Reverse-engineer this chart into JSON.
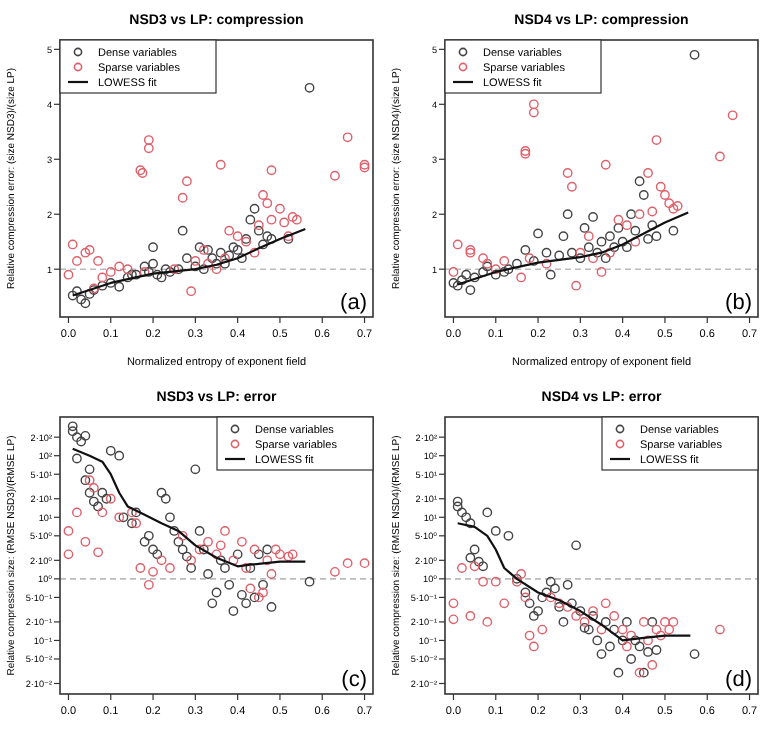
{
  "chart_data": [
    {
      "type": "scatter",
      "title": "NSD3 vs LP: compression",
      "xlabel": "Normalized entropy of exponent field",
      "ylabel": "Relative compression error: (size NSD3)/(size LP)",
      "annotations": [
        "(a)"
      ],
      "legend": "top left",
      "grid": false,
      "xlim": [
        -0.02,
        0.72
      ],
      "ylim": [
        0.13,
        5.17
      ],
      "xticks": [
        {
          "value": 0,
          "label": "0.0"
        },
        {
          "value": 0.1,
          "label": "0.1"
        },
        {
          "value": 0.2,
          "label": "0.2"
        },
        {
          "value": 0.3,
          "label": "0.3"
        },
        {
          "value": 0.4,
          "label": "0.4"
        },
        {
          "value": 0.5,
          "label": "0.5"
        },
        {
          "value": 0.6,
          "label": "0.6"
        },
        {
          "value": 0.7,
          "label": "0.7"
        }
      ],
      "yticks": [
        1,
        2,
        3,
        4,
        5
      ],
      "ref_lines": [
        {
          "axis": "y",
          "value": 1,
          "color": "#bbbbbb",
          "line_style": "dashed"
        }
      ],
      "series": [
        {
          "name": "Dense variables",
          "color": "#444444",
          "marker": "circle",
          "x": [
            0.01,
            0.02,
            0.03,
            0.04,
            0.05,
            0.06,
            0.08,
            0.1,
            0.12,
            0.14,
            0.16,
            0.18,
            0.19,
            0.2,
            0.21,
            0.22,
            0.23,
            0.24,
            0.26,
            0.27,
            0.28,
            0.3,
            0.31,
            0.32,
            0.33,
            0.34,
            0.35,
            0.36,
            0.37,
            0.38,
            0.39,
            0.4,
            0.41,
            0.42,
            0.43,
            0.44,
            0.45,
            0.46,
            0.47,
            0.48,
            0.52,
            0.57,
            0.2,
            0.15
          ],
          "values": [
            0.52,
            0.6,
            0.45,
            0.38,
            0.55,
            0.62,
            0.7,
            0.75,
            0.68,
            0.85,
            0.9,
            1.05,
            0.95,
            1.1,
            0.9,
            0.85,
            1.0,
            0.95,
            1.0,
            1.7,
            1.2,
            1.05,
            1.4,
            1.0,
            1.35,
            1.2,
            1.1,
            1.3,
            1.1,
            1.25,
            1.4,
            1.35,
            1.2,
            1.55,
            1.9,
            2.1,
            1.7,
            1.45,
            1.6,
            1.55,
            1.55,
            4.3,
            1.4,
            0.9
          ]
        },
        {
          "name": "Sparse variables",
          "color": "#e0606a",
          "marker": "circle",
          "x": [
            0.01,
            0.0,
            0.02,
            0.04,
            0.05,
            0.07,
            0.08,
            0.1,
            0.17,
            0.175,
            0.19,
            0.19,
            0.18,
            0.25,
            0.27,
            0.28,
            0.29,
            0.32,
            0.33,
            0.36,
            0.37,
            0.38,
            0.4,
            0.42,
            0.44,
            0.46,
            0.47,
            0.48,
            0.48,
            0.5,
            0.51,
            0.52,
            0.53,
            0.54,
            0.45,
            0.35,
            0.3,
            0.63,
            0.66,
            0.7,
            0.7,
            0.12,
            0.14,
            0.06
          ],
          "values": [
            1.45,
            0.9,
            1.15,
            1.3,
            1.35,
            1.15,
            0.85,
            0.95,
            2.8,
            2.75,
            3.2,
            3.35,
            0.95,
            1.0,
            2.3,
            2.6,
            0.6,
            1.35,
            1.1,
            2.9,
            1.2,
            1.7,
            1.6,
            1.5,
            1.3,
            2.35,
            2.2,
            2.8,
            1.9,
            2.1,
            1.85,
            1.6,
            1.95,
            1.9,
            1.8,
            1.0,
            1.15,
            2.7,
            3.4,
            2.9,
            2.85,
            1.05,
            1.0,
            0.65
          ]
        },
        {
          "name": "LOWESS fit",
          "type": "line",
          "color": "#111111",
          "marker": "none",
          "line_style": "solid",
          "x": [
            0.01,
            0.1,
            0.2,
            0.3,
            0.35,
            0.4,
            0.45,
            0.5,
            0.56
          ],
          "values": [
            0.52,
            0.75,
            0.92,
            1.0,
            1.08,
            1.2,
            1.38,
            1.55,
            1.73
          ]
        }
      ]
    },
    {
      "type": "scatter",
      "title": "NSD4 vs LP: compression",
      "xlabel": "Normalized entropy of exponent field",
      "ylabel": "Relative compression error: (size NSD4)/(size LP)",
      "annotations": [
        "(b)"
      ],
      "legend": "top left",
      "grid": false,
      "xlim": [
        -0.02,
        0.72
      ],
      "ylim": [
        0.13,
        5.17
      ],
      "xticks": [
        {
          "value": 0,
          "label": "0.0"
        },
        {
          "value": 0.1,
          "label": "0.1"
        },
        {
          "value": 0.2,
          "label": "0.2"
        },
        {
          "value": 0.3,
          "label": "0.3"
        },
        {
          "value": 0.4,
          "label": "0.4"
        },
        {
          "value": 0.5,
          "label": "0.5"
        },
        {
          "value": 0.6,
          "label": "0.6"
        },
        {
          "value": 0.7,
          "label": "0.7"
        }
      ],
      "yticks": [
        1,
        2,
        3,
        4,
        5
      ],
      "ref_lines": [
        {
          "axis": "y",
          "value": 1,
          "color": "#bbbbbb",
          "line_style": "dashed"
        }
      ],
      "series": [
        {
          "name": "Dense variables",
          "color": "#444444",
          "marker": "circle",
          "x": [
            0.0,
            0.01,
            0.02,
            0.03,
            0.04,
            0.05,
            0.07,
            0.08,
            0.1,
            0.12,
            0.15,
            0.17,
            0.19,
            0.2,
            0.22,
            0.23,
            0.25,
            0.26,
            0.27,
            0.28,
            0.3,
            0.31,
            0.32,
            0.33,
            0.34,
            0.35,
            0.36,
            0.37,
            0.38,
            0.39,
            0.4,
            0.41,
            0.42,
            0.43,
            0.44,
            0.45,
            0.46,
            0.47,
            0.48,
            0.57,
            0.52,
            0.13
          ],
          "values": [
            0.75,
            0.7,
            0.8,
            0.9,
            0.62,
            0.85,
            0.95,
            1.05,
            0.9,
            0.95,
            1.1,
            1.35,
            1.15,
            1.65,
            1.3,
            0.9,
            1.25,
            1.6,
            2.0,
            1.3,
            1.2,
            1.75,
            1.4,
            1.95,
            1.3,
            1.5,
            1.2,
            1.6,
            1.4,
            1.75,
            1.5,
            1.4,
            2.0,
            1.7,
            2.6,
            2.35,
            1.55,
            1.8,
            1.6,
            4.9,
            1.7,
            1.0
          ]
        },
        {
          "name": "Sparse variables",
          "color": "#e0606a",
          "marker": "circle",
          "x": [
            0.01,
            0.0,
            0.04,
            0.04,
            0.07,
            0.08,
            0.16,
            0.17,
            0.17,
            0.19,
            0.19,
            0.18,
            0.22,
            0.27,
            0.28,
            0.29,
            0.32,
            0.33,
            0.36,
            0.37,
            0.39,
            0.41,
            0.43,
            0.46,
            0.47,
            0.48,
            0.49,
            0.5,
            0.51,
            0.52,
            0.53,
            0.44,
            0.35,
            0.3,
            0.63,
            0.66,
            0.12,
            0.1
          ],
          "values": [
            1.45,
            0.95,
            1.3,
            1.35,
            1.2,
            1.1,
            0.85,
            3.15,
            3.1,
            3.85,
            4.0,
            1.2,
            1.1,
            2.75,
            2.5,
            0.7,
            1.6,
            1.2,
            2.9,
            1.3,
            1.9,
            1.8,
            1.5,
            2.75,
            2.05,
            3.35,
            2.5,
            2.35,
            2.2,
            2.1,
            2.15,
            2.0,
            0.95,
            1.3,
            3.05,
            3.8,
            1.15,
            1.0
          ]
        },
        {
          "name": "LOWESS fit",
          "type": "line",
          "color": "#111111",
          "marker": "none",
          "line_style": "solid",
          "x": [
            0.01,
            0.1,
            0.2,
            0.3,
            0.35,
            0.4,
            0.45,
            0.5,
            0.555
          ],
          "values": [
            0.72,
            0.95,
            1.12,
            1.22,
            1.3,
            1.45,
            1.65,
            1.85,
            2.03
          ]
        }
      ]
    },
    {
      "type": "scatter",
      "title": "NSD3 vs LP: error",
      "ylabel": "Relative compression size: (RMSE NSD3)/(RMSE LP)",
      "annotations": [
        "(c)"
      ],
      "legend": "top right",
      "grid": false,
      "log": "y",
      "xlim": [
        -0.02,
        0.72
      ],
      "ylim": [
        0.0135,
        425
      ],
      "xticks": [
        {
          "value": 0,
          "label": "0.0"
        },
        {
          "value": 0.1,
          "label": "0.1"
        },
        {
          "value": 0.2,
          "label": "0.2"
        },
        {
          "value": 0.3,
          "label": "0.3"
        },
        {
          "value": 0.4,
          "label": "0.4"
        },
        {
          "value": 0.5,
          "label": "0.5"
        },
        {
          "value": 0.6,
          "label": "0.6"
        },
        {
          "value": 0.7,
          "label": "0.7"
        }
      ],
      "yticks": [
        {
          "value": 200,
          "label": "2·10²"
        },
        {
          "value": 100,
          "label": "10²"
        },
        {
          "value": 50,
          "label": "5·10¹"
        },
        {
          "value": 20,
          "label": "2·10¹"
        },
        {
          "value": 10,
          "label": "10¹"
        },
        {
          "value": 5,
          "label": "5·10⁰"
        },
        {
          "value": 2,
          "label": "2·10⁰"
        },
        {
          "value": 1,
          "label": "10⁰"
        },
        {
          "value": 0.5,
          "label": "5·10⁻¹"
        },
        {
          "value": 0.2,
          "label": "2·10⁻¹"
        },
        {
          "value": 0.1,
          "label": "10⁻¹"
        },
        {
          "value": 0.05,
          "label": "5·10⁻²"
        },
        {
          "value": 0.02,
          "label": "2·10⁻²"
        }
      ],
      "ref_lines": [
        {
          "axis": "y",
          "value": 1,
          "color": "#bbbbbb",
          "line_style": "dashed"
        }
      ],
      "series": [
        {
          "name": "Dense variables",
          "color": "#444444",
          "marker": "circle",
          "x": [
            0.01,
            0.01,
            0.02,
            0.03,
            0.04,
            0.02,
            0.05,
            0.04,
            0.05,
            0.06,
            0.07,
            0.08,
            0.09,
            0.1,
            0.12,
            0.13,
            0.15,
            0.16,
            0.18,
            0.19,
            0.2,
            0.21,
            0.22,
            0.23,
            0.24,
            0.25,
            0.26,
            0.27,
            0.28,
            0.29,
            0.3,
            0.31,
            0.32,
            0.33,
            0.34,
            0.35,
            0.36,
            0.37,
            0.38,
            0.39,
            0.4,
            0.41,
            0.42,
            0.43,
            0.44,
            0.45,
            0.46,
            0.47,
            0.48,
            0.57
          ],
          "values": [
            300,
            250,
            200,
            170,
            210,
            90,
            60,
            40,
            25,
            18,
            15,
            25,
            20,
            120,
            100,
            10,
            8,
            12,
            4,
            5,
            3,
            2.5,
            25,
            20,
            10,
            6,
            4,
            3,
            2.3,
            1.5,
            60,
            6,
            3,
            1.2,
            0.4,
            0.6,
            2,
            1.5,
            0.8,
            0.3,
            2.5,
            0.55,
            0.4,
            1.5,
            0.5,
            2.5,
            0.8,
            3,
            0.35,
            0.9
          ]
        },
        {
          "name": "Sparse variables",
          "color": "#e0606a",
          "marker": "circle",
          "x": [
            0.0,
            0.0,
            0.02,
            0.04,
            0.05,
            0.06,
            0.07,
            0.08,
            0.1,
            0.12,
            0.15,
            0.16,
            0.17,
            0.19,
            0.2,
            0.22,
            0.24,
            0.27,
            0.29,
            0.31,
            0.33,
            0.35,
            0.37,
            0.39,
            0.41,
            0.42,
            0.43,
            0.44,
            0.45,
            0.47,
            0.48,
            0.49,
            0.5,
            0.52,
            0.53,
            0.36,
            0.46,
            0.63,
            0.66,
            0.7
          ],
          "values": [
            6,
            2.5,
            12,
            4,
            40,
            30,
            2.7,
            12,
            20,
            10,
            12,
            8,
            1.5,
            0.8,
            1.3,
            2,
            1.5,
            5,
            2,
            3,
            4,
            2.5,
            6,
            2,
            4,
            1.5,
            0.7,
            3,
            0.5,
            2,
            1.2,
            3,
            2.5,
            2.3,
            2.5,
            3.5,
            0.6,
            1.3,
            1.8,
            1.8
          ]
        },
        {
          "name": "LOWESS fit",
          "type": "line",
          "color": "#111111",
          "marker": "none",
          "line_style": "solid",
          "x": [
            0.01,
            0.05,
            0.08,
            0.1,
            0.12,
            0.14,
            0.18,
            0.22,
            0.26,
            0.3,
            0.35,
            0.4,
            0.43,
            0.5,
            0.56
          ],
          "values": [
            130,
            100,
            80,
            50,
            25,
            15,
            11,
            8,
            6,
            3.5,
            2.2,
            1.6,
            1.7,
            1.9,
            1.9
          ]
        }
      ]
    },
    {
      "type": "scatter",
      "title": "NSD4 vs LP: error",
      "ylabel": "Relative compression size: (RMSE NSD4)/(RMSE LP)",
      "annotations": [
        "(d)"
      ],
      "legend": "top right",
      "grid": false,
      "log": "y",
      "xlim": [
        -0.02,
        0.72
      ],
      "ylim": [
        0.0135,
        425
      ],
      "xticks": [
        {
          "value": 0,
          "label": "0.0"
        },
        {
          "value": 0.1,
          "label": "0.1"
        },
        {
          "value": 0.2,
          "label": "0.2"
        },
        {
          "value": 0.3,
          "label": "0.3"
        },
        {
          "value": 0.4,
          "label": "0.4"
        },
        {
          "value": 0.5,
          "label": "0.5"
        },
        {
          "value": 0.6,
          "label": "0.6"
        },
        {
          "value": 0.7,
          "label": "0.7"
        }
      ],
      "yticks": [
        {
          "value": 200,
          "label": "2·10²"
        },
        {
          "value": 100,
          "label": "10²"
        },
        {
          "value": 50,
          "label": "5·10¹"
        },
        {
          "value": 20,
          "label": "2·10¹"
        },
        {
          "value": 10,
          "label": "10¹"
        },
        {
          "value": 5,
          "label": "5·10⁰"
        },
        {
          "value": 2,
          "label": "2·10⁰"
        },
        {
          "value": 1,
          "label": "10⁰"
        },
        {
          "value": 0.5,
          "label": "5·10⁻¹"
        },
        {
          "value": 0.2,
          "label": "2·10⁻¹"
        },
        {
          "value": 0.1,
          "label": "10⁻¹"
        },
        {
          "value": 0.05,
          "label": "5·10⁻²"
        },
        {
          "value": 0.02,
          "label": "2·10⁻²"
        }
      ],
      "ref_lines": [
        {
          "axis": "y",
          "value": 1,
          "color": "#bbbbbb",
          "line_style": "dashed"
        }
      ],
      "series": [
        {
          "name": "Dense variables",
          "color": "#444444",
          "marker": "circle",
          "x": [
            0.01,
            0.01,
            0.02,
            0.03,
            0.04,
            0.05,
            0.04,
            0.06,
            0.07,
            0.08,
            0.1,
            0.13,
            0.15,
            0.17,
            0.18,
            0.19,
            0.2,
            0.21,
            0.22,
            0.23,
            0.24,
            0.25,
            0.26,
            0.27,
            0.28,
            0.29,
            0.3,
            0.31,
            0.32,
            0.33,
            0.34,
            0.35,
            0.36,
            0.37,
            0.38,
            0.39,
            0.4,
            0.41,
            0.42,
            0.43,
            0.44,
            0.45,
            0.46,
            0.47,
            0.48,
            0.57
          ],
          "values": [
            18,
            15,
            12,
            10,
            8,
            3,
            2.2,
            1.9,
            1.6,
            12,
            6,
            5,
            1,
            0.6,
            0.4,
            0.25,
            0.3,
            0.5,
            0.6,
            0.9,
            0.7,
            0.35,
            0.2,
            0.8,
            0.4,
            3.5,
            0.3,
            0.16,
            0.15,
            0.25,
            0.1,
            0.06,
            0.2,
            0.08,
            0.15,
            0.03,
            0.1,
            0.2,
            0.05,
            0.1,
            0.08,
            0.03,
            0.065,
            0.2,
            0.07,
            0.06
          ]
        },
        {
          "name": "Sparse variables",
          "color": "#e0606a",
          "marker": "circle",
          "x": [
            0.0,
            0.0,
            0.02,
            0.04,
            0.05,
            0.07,
            0.08,
            0.1,
            0.12,
            0.15,
            0.16,
            0.17,
            0.18,
            0.19,
            0.21,
            0.23,
            0.25,
            0.27,
            0.29,
            0.31,
            0.33,
            0.35,
            0.36,
            0.38,
            0.4,
            0.41,
            0.42,
            0.44,
            0.45,
            0.46,
            0.47,
            0.48,
            0.49,
            0.5,
            0.51,
            0.52,
            0.63
          ],
          "values": [
            0.4,
            0.22,
            1.5,
            0.25,
            1.6,
            0.9,
            0.2,
            0.9,
            0.4,
            0.9,
            1.2,
            0.5,
            0.12,
            0.08,
            0.15,
            0.5,
            0.4,
            0.35,
            0.25,
            0.2,
            0.3,
            0.15,
            0.4,
            0.25,
            0.15,
            0.08,
            0.12,
            0.03,
            0.2,
            0.1,
            0.04,
            0.15,
            0.12,
            0.2,
            0.15,
            0.2,
            0.15
          ]
        },
        {
          "name": "LOWESS fit",
          "type": "line",
          "color": "#111111",
          "marker": "none",
          "line_style": "solid",
          "x": [
            0.01,
            0.05,
            0.08,
            0.1,
            0.12,
            0.15,
            0.2,
            0.25,
            0.3,
            0.35,
            0.4,
            0.45,
            0.5,
            0.56
          ],
          "values": [
            8,
            7,
            5,
            3,
            1.5,
            1,
            0.6,
            0.45,
            0.3,
            0.18,
            0.1,
            0.11,
            0.12,
            0.12
          ]
        }
      ]
    }
  ]
}
